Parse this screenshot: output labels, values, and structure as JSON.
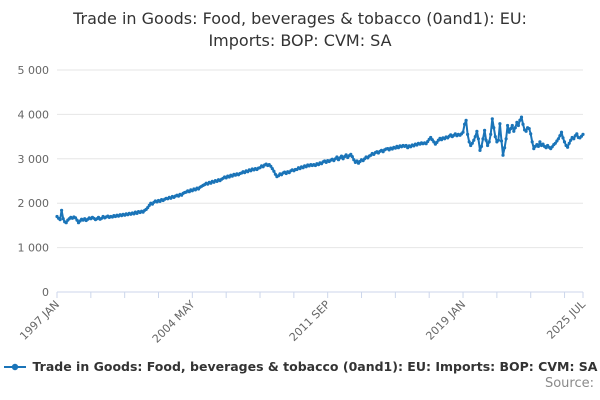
{
  "title": "Trade in Goods: Food, beverages & tobacco (0and1): EU: Imports: BOP: CVM: SA",
  "legend": {
    "label": "Trade in Goods: Food, beverages & tobacco (0and1): EU: Imports: BOP: CVM: SA"
  },
  "source_label": "Source:",
  "colors": {
    "line": "#1a74b8",
    "grid": "#e6e6e6",
    "axis": "#ccd6eb",
    "axis_text": "#666666",
    "title_text": "#333333"
  },
  "chart_data": {
    "type": "line",
    "title": "Trade in Goods: Food, beverages & tobacco (0and1): EU: Imports: BOP: CVM: SA",
    "grid": true,
    "legend_position": "bottom",
    "y_axis": {
      "min": 0,
      "max": 5000,
      "tick_interval": 1000,
      "tick_labels": [
        "0",
        "1 000",
        "2 000",
        "3 000",
        "4 000",
        "5 000"
      ]
    },
    "x_axis": {
      "range_months": 342,
      "start": "1997 JAN",
      "end": "2025 JUL",
      "tick_months": [
        0,
        22,
        44,
        66,
        88,
        110,
        132,
        154,
        176,
        198,
        220,
        242,
        264,
        286,
        308,
        330,
        342
      ],
      "labels": [
        {
          "month": 0,
          "text": "1997 JAN"
        },
        {
          "month": 88,
          "text": "2004 MAY"
        },
        {
          "month": 176,
          "text": "2011 SEP"
        },
        {
          "month": 264,
          "text": "2019 JAN"
        },
        {
          "month": 342,
          "text": "2025 JUL"
        }
      ]
    },
    "series": [
      {
        "name": "Trade in Goods: Food, beverages & tobacco (0and1): EU: Imports: BOP: CVM: SA",
        "color": "#1a74b8",
        "frequency": "monthly",
        "start": "1997-01",
        "end": "2025-07",
        "values": [
          1700,
          1660,
          1630,
          1840,
          1650,
          1580,
          1560,
          1620,
          1650,
          1680,
          1660,
          1690,
          1670,
          1620,
          1560,
          1600,
          1640,
          1620,
          1650,
          1610,
          1640,
          1670,
          1650,
          1680,
          1660,
          1630,
          1650,
          1680,
          1640,
          1660,
          1700,
          1670,
          1690,
          1710,
          1680,
          1700,
          1690,
          1720,
          1700,
          1730,
          1710,
          1740,
          1720,
          1750,
          1730,
          1760,
          1740,
          1770,
          1750,
          1780,
          1760,
          1800,
          1770,
          1810,
          1790,
          1820,
          1800,
          1840,
          1860,
          1900,
          1950,
          2000,
          1980,
          2020,
          2050,
          2030,
          2060,
          2040,
          2080,
          2060,
          2090,
          2110,
          2100,
          2130,
          2110,
          2150,
          2130,
          2160,
          2180,
          2160,
          2200,
          2180,
          2220,
          2240,
          2250,
          2280,
          2260,
          2300,
          2280,
          2320,
          2300,
          2340,
          2320,
          2360,
          2380,
          2400,
          2420,
          2450,
          2430,
          2470,
          2450,
          2490,
          2470,
          2510,
          2490,
          2530,
          2510,
          2540,
          2560,
          2590,
          2570,
          2610,
          2590,
          2630,
          2610,
          2650,
          2630,
          2660,
          2640,
          2670,
          2680,
          2710,
          2690,
          2730,
          2710,
          2750,
          2730,
          2770,
          2750,
          2780,
          2760,
          2790,
          2800,
          2840,
          2820,
          2860,
          2880,
          2850,
          2870,
          2830,
          2780,
          2720,
          2650,
          2600,
          2620,
          2660,
          2640,
          2680,
          2700,
          2670,
          2710,
          2690,
          2730,
          2750,
          2730,
          2760,
          2760,
          2800,
          2780,
          2820,
          2800,
          2840,
          2820,
          2860,
          2840,
          2870,
          2850,
          2870,
          2850,
          2890,
          2870,
          2910,
          2890,
          2930,
          2950,
          2920,
          2960,
          2940,
          2970,
          2990,
          2960,
          3000,
          3040,
          2980,
          3020,
          3060,
          3000,
          3050,
          3090,
          3030,
          3070,
          3100,
          3050,
          2980,
          2920,
          2950,
          2900,
          2940,
          2980,
          2960,
          3000,
          3040,
          3020,
          3060,
          3080,
          3120,
          3100,
          3140,
          3160,
          3130,
          3170,
          3190,
          3160,
          3200,
          3220,
          3230,
          3200,
          3240,
          3220,
          3260,
          3240,
          3280,
          3250,
          3290,
          3270,
          3300,
          3280,
          3300,
          3250,
          3290,
          3270,
          3310,
          3290,
          3330,
          3310,
          3350,
          3330,
          3360,
          3340,
          3360,
          3340,
          3390,
          3440,
          3480,
          3430,
          3380,
          3330,
          3370,
          3420,
          3460,
          3430,
          3470,
          3450,
          3490,
          3470,
          3510,
          3540,
          3500,
          3530,
          3560,
          3520,
          3550,
          3530,
          3560,
          3600,
          3780,
          3865,
          3550,
          3380,
          3300,
          3350,
          3420,
          3500,
          3620,
          3450,
          3190,
          3280,
          3450,
          3640,
          3420,
          3300,
          3380,
          3550,
          3900,
          3700,
          3500,
          3380,
          3420,
          3790,
          3400,
          3080,
          3250,
          3450,
          3750,
          3600,
          3680,
          3750,
          3620,
          3700,
          3820,
          3750,
          3870,
          3940,
          3780,
          3650,
          3620,
          3700,
          3680,
          3560,
          3380,
          3230,
          3280,
          3320,
          3280,
          3380,
          3300,
          3330,
          3280,
          3250,
          3300,
          3260,
          3230,
          3270,
          3320,
          3350,
          3400,
          3450,
          3520,
          3600,
          3470,
          3380,
          3300,
          3260,
          3350,
          3420,
          3480,
          3450,
          3520,
          3560,
          3480,
          3470,
          3510,
          3550
        ]
      }
    ]
  }
}
